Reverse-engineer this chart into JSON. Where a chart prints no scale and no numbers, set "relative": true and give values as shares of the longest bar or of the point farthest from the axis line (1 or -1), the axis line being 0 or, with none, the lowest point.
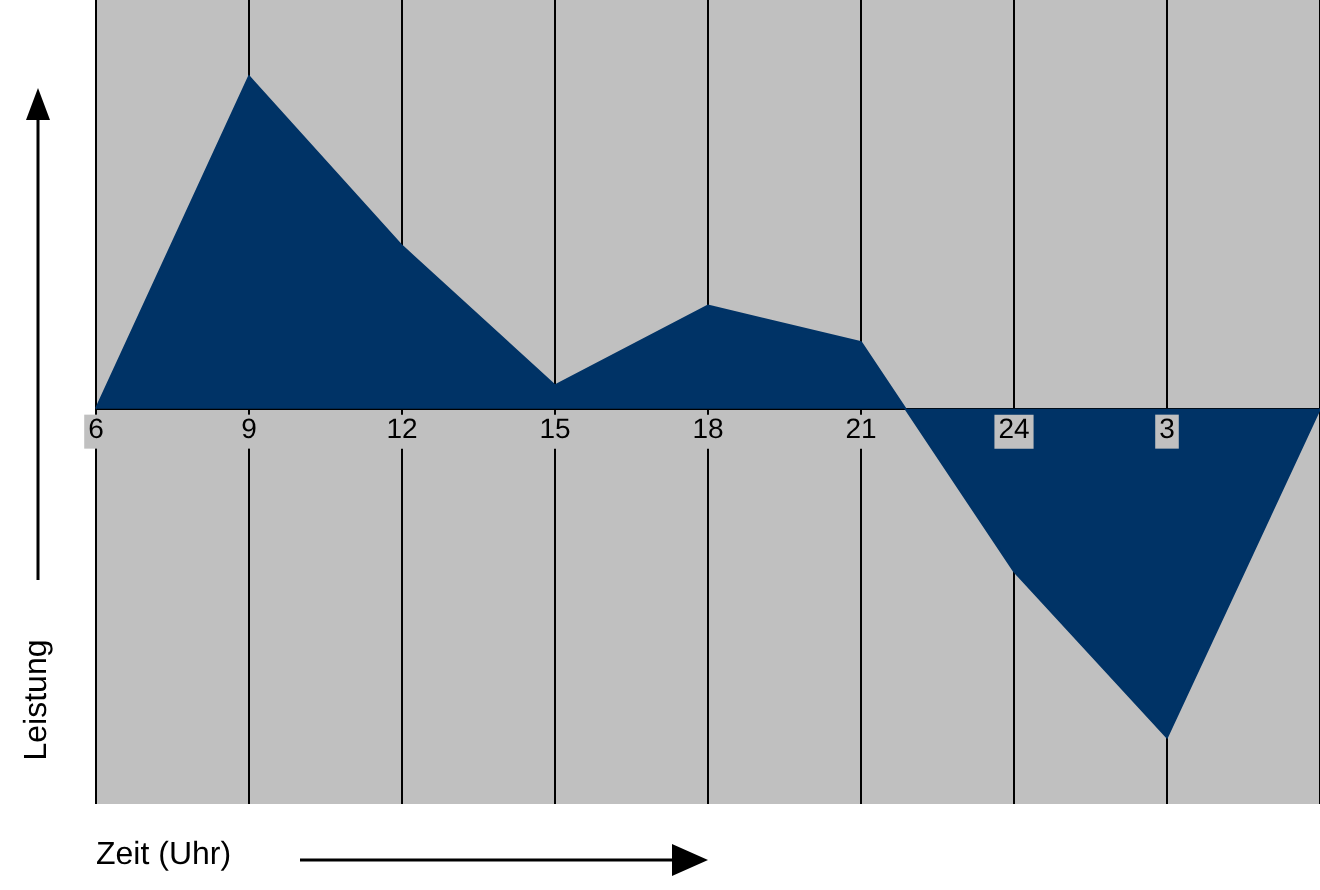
{
  "chart_data": {
    "type": "area",
    "xlabel": "Zeit (Uhr)",
    "ylabel": "Leistung",
    "relative": true,
    "grid": "x",
    "legend": false,
    "marker": "none",
    "categories": [
      "6",
      "9",
      "12",
      "15",
      "18",
      "21",
      "24",
      "3",
      null
    ],
    "values": [
      0,
      1,
      0.49,
      0.07,
      0.31,
      0.2,
      -0.49,
      -0.99,
      0
    ],
    "color": "#003366"
  }
}
